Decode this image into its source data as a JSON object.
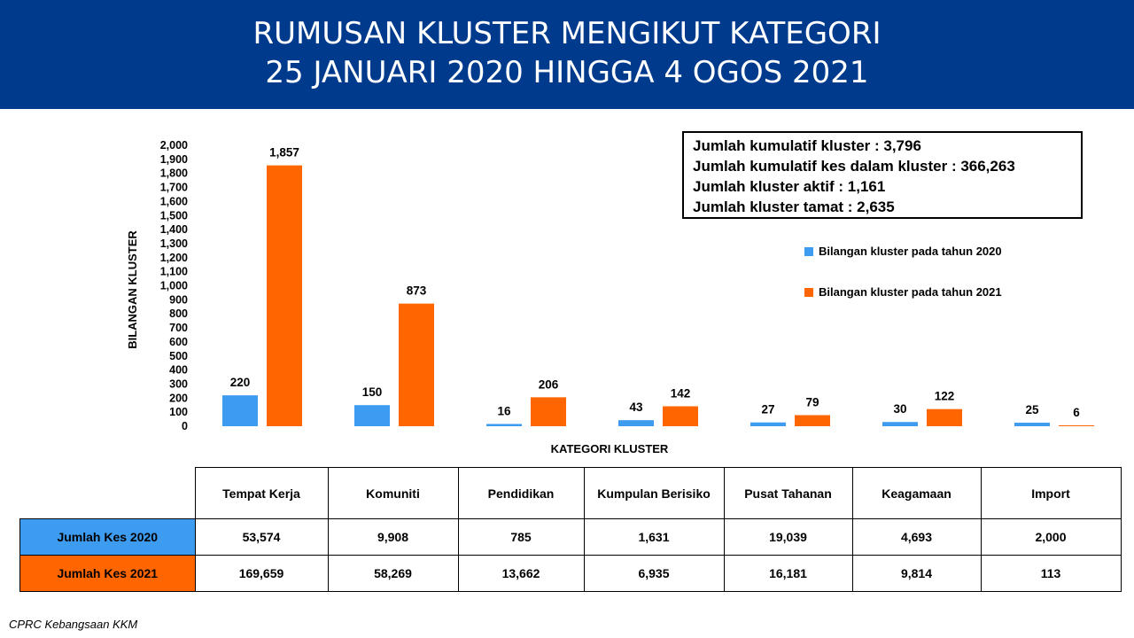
{
  "header": {
    "title_line1": "RUMUSAN KLUSTER MENGIKUT KATEGORI",
    "title_line2": "25 JANUARI 2020 HINGGA 4 OGOS 2021"
  },
  "summary": {
    "line1": "Jumlah kumulatif kluster : 3,796",
    "line2": "Jumlah kumulatif kes dalam kluster : 366,263",
    "line3": "Jumlah kluster aktif : 1,161",
    "line4": "Jumlah kluster tamat : 2,635"
  },
  "colors": {
    "series2020": "#3d9bf0",
    "series2021": "#ff6600",
    "header_bg": "#003a8c"
  },
  "chart_data": {
    "type": "bar",
    "xlabel": "KATEGORI KLUSTER",
    "ylabel": "BILANGAN KLUSTER",
    "ylim": [
      0,
      2000
    ],
    "yticks": [
      0,
      100,
      200,
      300,
      400,
      500,
      600,
      700,
      800,
      900,
      1000,
      1100,
      1200,
      1300,
      1400,
      1500,
      1600,
      1700,
      1800,
      1900,
      2000
    ],
    "ytick_labels": [
      "0",
      "100",
      "200",
      "300",
      "400",
      "500",
      "600",
      "700",
      "800",
      "900",
      "1,000",
      "1,100",
      "1,200",
      "1,300",
      "1,400",
      "1,500",
      "1,600",
      "1,700",
      "1,800",
      "1,900",
      "2,000"
    ],
    "grid": false,
    "legend_position": "right",
    "categories": [
      "Tempat Kerja",
      "Komuniti",
      "Pendidikan",
      "Kumpulan Berisiko",
      "Pusat Tahanan",
      "Keagamaan",
      "Import"
    ],
    "series": [
      {
        "name": "Bilangan kluster pada tahun 2020",
        "values": [
          220,
          150,
          16,
          43,
          27,
          30,
          25
        ],
        "labels": [
          "220",
          "150",
          "16",
          "43",
          "27",
          "30",
          "25"
        ]
      },
      {
        "name": "Bilangan kluster pada tahun 2021",
        "values": [
          1857,
          873,
          206,
          142,
          79,
          122,
          6
        ],
        "labels": [
          "1,857",
          "873",
          "206",
          "142",
          "79",
          "122",
          "6"
        ]
      }
    ]
  },
  "table": {
    "headers": [
      "Tempat Kerja",
      "Komuniti",
      "Pendidikan",
      "Kumpulan Berisiko",
      "Pusat Tahanan",
      "Keagamaan",
      "Import"
    ],
    "rows": [
      {
        "label": "Jumlah Kes 2020",
        "values": [
          "53,574",
          "9,908",
          "785",
          "1,631",
          "19,039",
          "4,693",
          "2,000"
        ]
      },
      {
        "label": "Jumlah Kes 2021",
        "values": [
          "169,659",
          "58,269",
          "13,662",
          "6,935",
          "16,181",
          "9,814",
          "113"
        ]
      }
    ]
  },
  "footer": {
    "credit": "CPRC Kebangsaan KKM"
  }
}
